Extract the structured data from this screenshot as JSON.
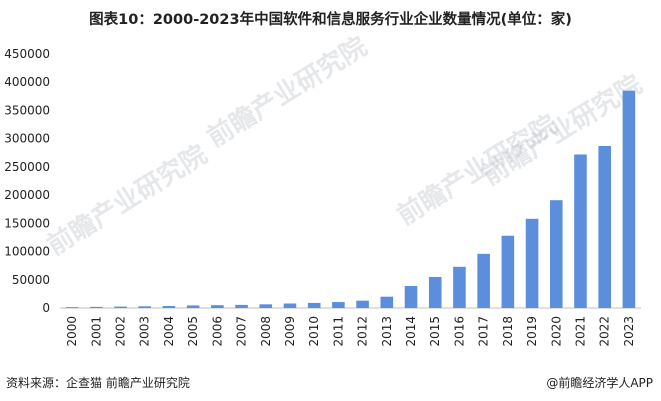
{
  "title": "图表10：2000-2023年中国软件和信息服务行业企业数量情况(单位：家)",
  "source": "资料来源：企查猫 前瞻产业研究院",
  "credit": "@前瞻经济学人APP",
  "watermark": "前瞻产业研究院",
  "colors": {
    "bar": "#5B8FDB",
    "axis": "#bfbfbf",
    "text": "#222222"
  },
  "chart_data": {
    "type": "bar",
    "title": "图表10：2000-2023年中国软件和信息服务行业企业数量情况(单位：家)",
    "xlabel": "",
    "ylabel": "",
    "categories": [
      "2000",
      "2001",
      "2002",
      "2003",
      "2004",
      "2005",
      "2006",
      "2007",
      "2008",
      "2009",
      "2010",
      "2011",
      "2012",
      "2013",
      "2014",
      "2015",
      "2016",
      "2017",
      "2018",
      "2019",
      "2020",
      "2021",
      "2022",
      "2023"
    ],
    "values": [
      1500,
      2000,
      2500,
      3000,
      3500,
      4500,
      5000,
      5500,
      6500,
      8000,
      9000,
      10500,
      13000,
      20000,
      39000,
      55000,
      73000,
      96000,
      128000,
      158000,
      191000,
      272000,
      287000,
      385000
    ],
    "ylim": [
      0,
      450000
    ],
    "yticks": [
      "0",
      "50000",
      "100000",
      "150000",
      "200000",
      "250000",
      "300000",
      "350000",
      "400000",
      "450000"
    ],
    "grid": false,
    "legend": "none"
  }
}
